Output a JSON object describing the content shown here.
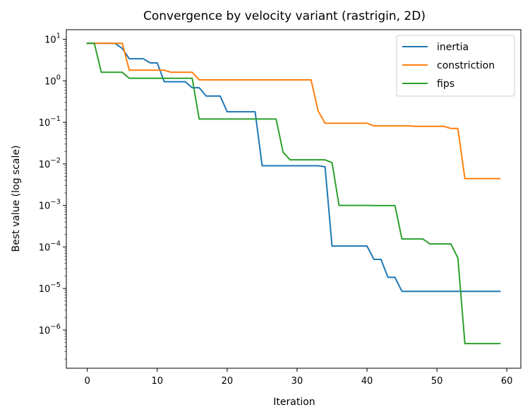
{
  "chart_data": {
    "type": "line",
    "title": "Convergence by velocity variant (rastrigin, 2D)",
    "xlabel": "Iteration",
    "ylabel": "Best value (log scale)",
    "xlim": [
      -3,
      62
    ],
    "ylim": [
      1.2e-07,
      17
    ],
    "yscale": "log",
    "x_ticks": [
      0,
      10,
      20,
      30,
      40,
      50,
      60
    ],
    "y_ticks": [
      {
        "exp": 1,
        "base": "10",
        "sup": "1"
      },
      {
        "exp": 0,
        "base": "10",
        "sup": "0"
      },
      {
        "exp": -1,
        "base": "10",
        "sup": "−1"
      },
      {
        "exp": -2,
        "base": "10",
        "sup": "−2"
      },
      {
        "exp": -3,
        "base": "10",
        "sup": "−3"
      },
      {
        "exp": -4,
        "base": "10",
        "sup": "−4"
      },
      {
        "exp": -5,
        "base": "10",
        "sup": "−5"
      },
      {
        "exp": -6,
        "base": "10",
        "sup": "−6"
      }
    ],
    "grid": false,
    "legend_position": "top-right",
    "series": [
      {
        "name": "inertia",
        "color": "#1f77b4",
        "points": [
          [
            0,
            8.0
          ],
          [
            1,
            8.0
          ],
          [
            2,
            8.0
          ],
          [
            3,
            8.0
          ],
          [
            4,
            7.9
          ],
          [
            5,
            6.0
          ],
          [
            6,
            3.4
          ],
          [
            7,
            3.4
          ],
          [
            8,
            3.4
          ],
          [
            9,
            2.7
          ],
          [
            10,
            2.7
          ],
          [
            11,
            0.95
          ],
          [
            12,
            0.95
          ],
          [
            13,
            0.95
          ],
          [
            14,
            0.95
          ],
          [
            15,
            0.68
          ],
          [
            16,
            0.68
          ],
          [
            17,
            0.43
          ],
          [
            18,
            0.43
          ],
          [
            19,
            0.43
          ],
          [
            20,
            0.18
          ],
          [
            21,
            0.18
          ],
          [
            22,
            0.18
          ],
          [
            23,
            0.18
          ],
          [
            24,
            0.18
          ],
          [
            25,
            0.009
          ],
          [
            26,
            0.009
          ],
          [
            27,
            0.009
          ],
          [
            28,
            0.009
          ],
          [
            29,
            0.009
          ],
          [
            30,
            0.009
          ],
          [
            31,
            0.009
          ],
          [
            32,
            0.009
          ],
          [
            33,
            0.009
          ],
          [
            34,
            0.0085
          ],
          [
            35,
            0.000105
          ],
          [
            36,
            0.000105
          ],
          [
            37,
            0.000105
          ],
          [
            38,
            0.000105
          ],
          [
            39,
            0.000105
          ],
          [
            40,
            0.000105
          ],
          [
            41,
            5e-05
          ],
          [
            42,
            5e-05
          ],
          [
            43,
            1.85e-05
          ],
          [
            44,
            1.85e-05
          ],
          [
            45,
            8.5e-06
          ],
          [
            46,
            8.5e-06
          ],
          [
            47,
            8.5e-06
          ],
          [
            48,
            8.5e-06
          ],
          [
            49,
            8.5e-06
          ],
          [
            50,
            8.5e-06
          ],
          [
            51,
            8.5e-06
          ],
          [
            52,
            8.5e-06
          ],
          [
            53,
            8.5e-06
          ],
          [
            54,
            8.5e-06
          ],
          [
            55,
            8.5e-06
          ],
          [
            56,
            8.5e-06
          ],
          [
            57,
            8.5e-06
          ],
          [
            58,
            8.5e-06
          ],
          [
            59,
            8.5e-06
          ]
        ]
      },
      {
        "name": "constriction",
        "color": "#ff7f0e",
        "points": [
          [
            0,
            8.0
          ],
          [
            1,
            8.0
          ],
          [
            2,
            8.0
          ],
          [
            3,
            8.0
          ],
          [
            4,
            8.0
          ],
          [
            5,
            8.0
          ],
          [
            6,
            1.8
          ],
          [
            7,
            1.8
          ],
          [
            8,
            1.8
          ],
          [
            9,
            1.8
          ],
          [
            10,
            1.8
          ],
          [
            11,
            1.8
          ],
          [
            12,
            1.6
          ],
          [
            13,
            1.6
          ],
          [
            14,
            1.6
          ],
          [
            15,
            1.6
          ],
          [
            16,
            1.05
          ],
          [
            17,
            1.05
          ],
          [
            18,
            1.05
          ],
          [
            19,
            1.05
          ],
          [
            20,
            1.05
          ],
          [
            21,
            1.05
          ],
          [
            22,
            1.05
          ],
          [
            23,
            1.05
          ],
          [
            24,
            1.05
          ],
          [
            25,
            1.05
          ],
          [
            26,
            1.05
          ],
          [
            27,
            1.05
          ],
          [
            28,
            1.05
          ],
          [
            29,
            1.05
          ],
          [
            30,
            1.05
          ],
          [
            31,
            1.05
          ],
          [
            32,
            1.05
          ],
          [
            33,
            0.19
          ],
          [
            34,
            0.095
          ],
          [
            35,
            0.095
          ],
          [
            36,
            0.095
          ],
          [
            37,
            0.095
          ],
          [
            38,
            0.095
          ],
          [
            39,
            0.095
          ],
          [
            40,
            0.095
          ],
          [
            41,
            0.082
          ],
          [
            42,
            0.082
          ],
          [
            43,
            0.082
          ],
          [
            44,
            0.082
          ],
          [
            45,
            0.082
          ],
          [
            46,
            0.082
          ],
          [
            47,
            0.08
          ],
          [
            48,
            0.08
          ],
          [
            49,
            0.08
          ],
          [
            50,
            0.08
          ],
          [
            51,
            0.08
          ],
          [
            52,
            0.071
          ],
          [
            53,
            0.071
          ],
          [
            54,
            0.0044
          ],
          [
            55,
            0.0044
          ],
          [
            56,
            0.0044
          ],
          [
            57,
            0.0044
          ],
          [
            58,
            0.0044
          ],
          [
            59,
            0.0044
          ]
        ]
      },
      {
        "name": "fips",
        "color": "#2ca02c",
        "points": [
          [
            0,
            8.0
          ],
          [
            1,
            8.0
          ],
          [
            2,
            1.6
          ],
          [
            3,
            1.6
          ],
          [
            4,
            1.6
          ],
          [
            5,
            1.6
          ],
          [
            6,
            1.15
          ],
          [
            7,
            1.15
          ],
          [
            8,
            1.15
          ],
          [
            9,
            1.15
          ],
          [
            10,
            1.15
          ],
          [
            11,
            1.15
          ],
          [
            12,
            1.15
          ],
          [
            13,
            1.15
          ],
          [
            14,
            1.15
          ],
          [
            15,
            1.15
          ],
          [
            16,
            0.12
          ],
          [
            17,
            0.12
          ],
          [
            18,
            0.12
          ],
          [
            19,
            0.12
          ],
          [
            20,
            0.12
          ],
          [
            21,
            0.12
          ],
          [
            22,
            0.12
          ],
          [
            23,
            0.12
          ],
          [
            24,
            0.12
          ],
          [
            25,
            0.12
          ],
          [
            26,
            0.12
          ],
          [
            27,
            0.12
          ],
          [
            28,
            0.019
          ],
          [
            29,
            0.0125
          ],
          [
            30,
            0.0125
          ],
          [
            31,
            0.0125
          ],
          [
            32,
            0.0125
          ],
          [
            33,
            0.0125
          ],
          [
            34,
            0.0125
          ],
          [
            35,
            0.0107
          ],
          [
            36,
            0.001
          ],
          [
            37,
            0.001
          ],
          [
            38,
            0.001
          ],
          [
            39,
            0.001
          ],
          [
            40,
            0.001
          ],
          [
            41,
            0.00099
          ],
          [
            42,
            0.00099
          ],
          [
            43,
            0.00099
          ],
          [
            44,
            0.00099
          ],
          [
            45,
            0.000155
          ],
          [
            46,
            0.000155
          ],
          [
            47,
            0.000155
          ],
          [
            48,
            0.000155
          ],
          [
            49,
            0.000118
          ],
          [
            50,
            0.000118
          ],
          [
            51,
            0.000118
          ],
          [
            52,
            0.000118
          ],
          [
            53,
            5.4e-05
          ],
          [
            54,
            4.7e-07
          ],
          [
            55,
            4.7e-07
          ],
          [
            56,
            4.7e-07
          ],
          [
            57,
            4.7e-07
          ],
          [
            58,
            4.7e-07
          ],
          [
            59,
            4.7e-07
          ]
        ]
      }
    ]
  }
}
